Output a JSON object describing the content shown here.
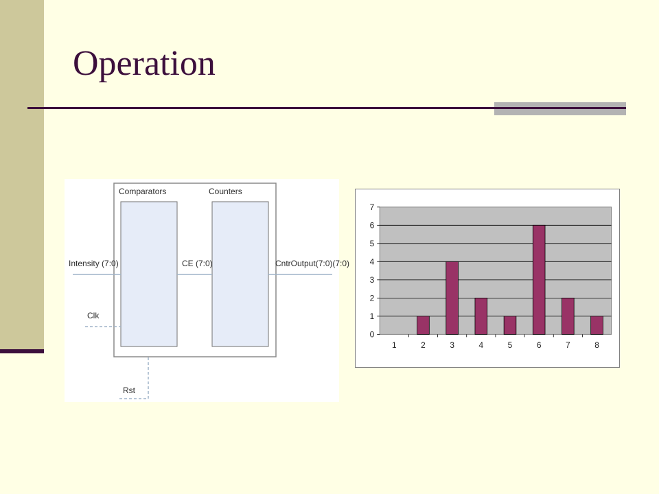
{
  "slide": {
    "title": "Operation",
    "colors": {
      "background": "#ffffe5",
      "sidebar": "#cdc89b",
      "accent": "#3c0f3c",
      "bar": "#993366",
      "plot_area": "#c0c0c0"
    }
  },
  "diagram": {
    "comparators_label": "Comparators",
    "counters_label": "Counters",
    "intensity_label": "Intensity (7:0)",
    "ce_label": "CE (7:0)",
    "output_label": "CntrOutput(7:0)(7:0)",
    "clk_label": "Clk",
    "rst_label": "Rst"
  },
  "chart_data": {
    "type": "bar",
    "categories": [
      "1",
      "2",
      "3",
      "4",
      "5",
      "6",
      "7",
      "8"
    ],
    "values": [
      0,
      1,
      4,
      2,
      1,
      6,
      2,
      1
    ],
    "ylim": [
      0,
      7
    ],
    "yticks": [
      "0",
      "1",
      "2",
      "3",
      "4",
      "5",
      "6",
      "7"
    ],
    "grid": true,
    "legend": "none"
  }
}
